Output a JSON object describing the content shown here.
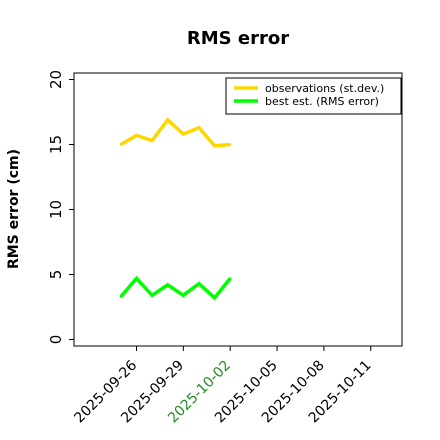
{
  "chart_data": {
    "type": "line",
    "title": "RMS error",
    "xlabel": "",
    "ylabel": "RMS error (cm)",
    "x_ticks": [
      "2025-09-26",
      "2025-09-29",
      "2025-10-02",
      "2025-10-05",
      "2025-10-08",
      "2025-10-11"
    ],
    "x_highlight_tick": "2025-10-02",
    "xlim": [
      "2025-09-22",
      "2025-10-13"
    ],
    "ylim": [
      -0.5,
      20.5
    ],
    "y_ticks": [
      0,
      5,
      10,
      15,
      20
    ],
    "grid": false,
    "legend_position": "top-right",
    "colors": {
      "observations": "#FFD700",
      "best_est": "#00FF00",
      "highlight_tick": "#228B22",
      "axis": "#000000"
    },
    "x": [
      "2025-09-25",
      "2025-09-26",
      "2025-09-27",
      "2025-09-28",
      "2025-09-29",
      "2025-09-30",
      "2025-10-01",
      "2025-10-02"
    ],
    "series": [
      {
        "name": "observations (st.dev.)",
        "key": "observations",
        "values": [
          15.0,
          15.7,
          15.3,
          16.9,
          15.8,
          16.3,
          14.9,
          15.0
        ]
      },
      {
        "name": "best est. (RMS error)",
        "key": "best_est",
        "values": [
          3.3,
          4.7,
          3.4,
          4.2,
          3.4,
          4.3,
          3.2,
          4.7
        ]
      }
    ]
  }
}
